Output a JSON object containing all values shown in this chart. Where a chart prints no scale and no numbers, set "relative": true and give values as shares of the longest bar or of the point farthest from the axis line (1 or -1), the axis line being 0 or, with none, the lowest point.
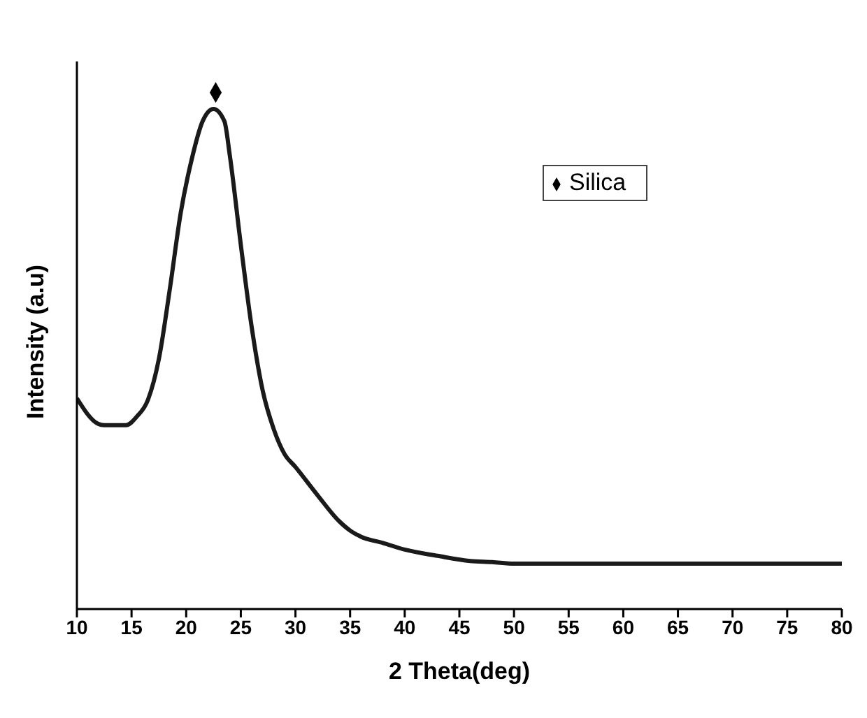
{
  "chart_data": {
    "type": "line",
    "xlabel": "2 Theta(deg)",
    "ylabel": "Intensity (a.u)",
    "relative": true,
    "xlim": [
      10,
      80
    ],
    "xticks": [
      10,
      15,
      20,
      25,
      30,
      35,
      40,
      45,
      50,
      55,
      60,
      65,
      70,
      75,
      80
    ],
    "grid": false,
    "legend": "top right",
    "series": [
      {
        "color": "#1a1a1a",
        "marker": "none",
        "x": [
          10,
          11.9,
          12.5,
          14.5,
          15.5,
          16.5,
          17.5,
          18.5,
          19.5,
          20.5,
          21.5,
          22.5,
          23.5,
          24,
          25,
          26,
          27,
          28,
          29,
          30,
          32,
          34,
          35,
          36,
          38,
          40,
          43,
          46,
          48,
          50,
          60,
          70,
          80
        ],
        "values": [
          0.408,
          0.359,
          0.356,
          0.356,
          0.373,
          0.405,
          0.484,
          0.619,
          0.767,
          0.87,
          0.944,
          0.968,
          0.944,
          0.877,
          0.705,
          0.545,
          0.423,
          0.349,
          0.3,
          0.275,
          0.221,
          0.17,
          0.152,
          0.14,
          0.128,
          0.115,
          0.103,
          0.093,
          0.091,
          0.088,
          0.088,
          0.088,
          0.088
        ]
      },
      {
        "type": "scatter",
        "name": "Silica",
        "color": "#000000",
        "marker": "diamond",
        "x": [
          22.7
        ],
        "values": [
          1
        ]
      }
    ]
  }
}
